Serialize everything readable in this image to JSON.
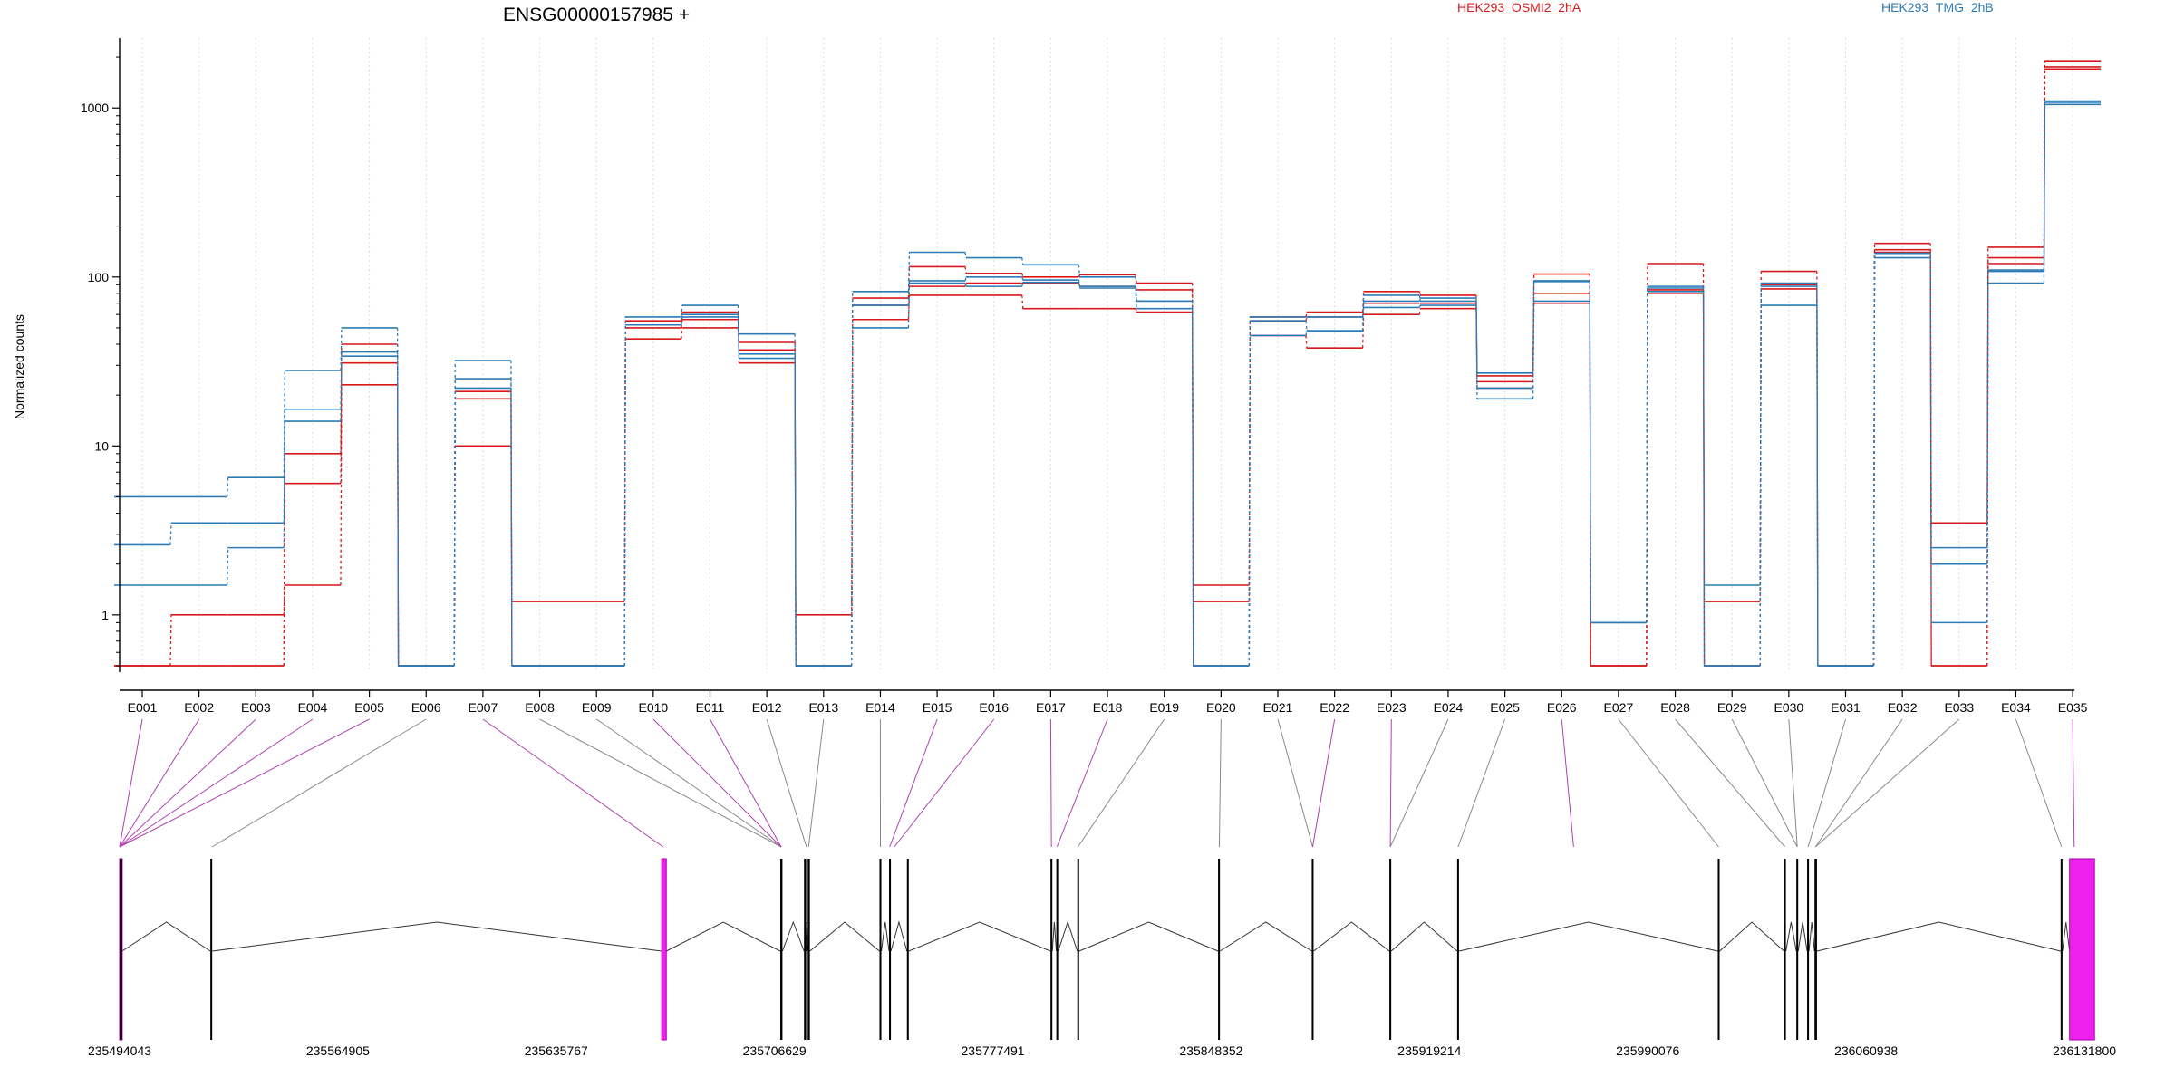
{
  "chart_data": {
    "type": "line",
    "title": "ENSG00000157985 +",
    "ylabel": "Normalized counts",
    "xlabel": "",
    "y_scale": "log",
    "ylim": [
      0.5,
      2500
    ],
    "y_ticks": [
      1,
      10,
      100,
      1000
    ],
    "y_tick_labels": [
      "1",
      "10",
      "100",
      "1000"
    ],
    "grid": "vertical dotted lines at exon bins",
    "legend_position": "top",
    "categories": [
      "E001",
      "E002",
      "E003",
      "E004",
      "E005",
      "E006",
      "E007",
      "E008",
      "E009",
      "E010",
      "E011",
      "E012",
      "E013",
      "E014",
      "E015",
      "E016",
      "E017",
      "E018",
      "E019",
      "E020",
      "E021",
      "E022",
      "E023",
      "E024",
      "E025",
      "E026",
      "E027",
      "E028",
      "E029",
      "E030",
      "E031",
      "E032",
      "E033",
      "E034",
      "E035"
    ],
    "groups": [
      {
        "name": "HEK293_OSMI2_2hA",
        "color": "#d7191c"
      },
      {
        "name": "HEK293_TMG_2hB",
        "color": "#2c7bb6"
      }
    ],
    "series": [
      {
        "group": 0,
        "values": [
          0.5,
          1.0,
          1.0,
          1.5,
          23,
          0.5,
          10,
          1.2,
          1.2,
          43,
          50,
          31,
          1.0,
          56,
          78,
          78,
          65,
          65,
          62,
          1.5,
          45,
          38,
          60,
          65,
          22,
          70,
          0.5,
          80,
          1.2,
          85,
          0.5,
          140,
          0.5,
          120,
          1700
        ]
      },
      {
        "group": 0,
        "values": [
          0.5,
          0.5,
          0.5,
          6,
          31,
          0.5,
          19,
          0.5,
          0.5,
          50,
          56,
          37,
          0.5,
          68,
          88,
          92,
          92,
          88,
          84,
          1.2,
          55,
          58,
          70,
          70,
          24,
          80,
          0.5,
          84,
          0.5,
          90,
          0.5,
          145,
          0.5,
          130,
          1750
        ]
      },
      {
        "group": 0,
        "values": [
          0.5,
          0.5,
          0.5,
          9,
          40,
          0.5,
          21,
          0.5,
          0.5,
          55,
          62,
          41,
          0.5,
          75,
          115,
          105,
          100,
          103,
          92,
          0.5,
          58,
          62,
          82,
          78,
          26,
          104,
          0.5,
          120,
          0.5,
          108,
          0.5,
          158,
          3.5,
          150,
          1900
        ]
      },
      {
        "group": 1,
        "values": [
          5,
          5,
          6.5,
          28,
          50,
          0.5,
          32,
          0.5,
          0.5,
          58,
          68,
          46,
          0.5,
          82,
          140,
          130,
          118,
          100,
          72,
          0.5,
          58,
          58,
          78,
          72,
          27,
          94,
          0.9,
          88,
          1.5,
          92,
          0.5,
          138,
          2.5,
          110,
          1100
        ]
      },
      {
        "group": 1,
        "values": [
          2.6,
          3.5,
          3.5,
          16.5,
          36,
          0.5,
          25,
          0.5,
          0.5,
          52,
          60,
          35,
          0.5,
          68,
          95,
          100,
          96,
          88,
          72,
          0.5,
          55,
          48,
          72,
          75,
          22,
          95,
          0.9,
          86,
          0.5,
          88,
          0.5,
          138,
          2.0,
          108,
          1080
        ]
      },
      {
        "group": 1,
        "values": [
          1.5,
          1.5,
          2.5,
          14,
          34,
          0.5,
          22,
          0.5,
          0.5,
          52,
          58,
          33,
          0.5,
          50,
          92,
          88,
          93,
          86,
          65,
          0.5,
          45,
          48,
          66,
          68,
          19,
          72,
          0.9,
          82,
          0.5,
          68,
          0.5,
          130,
          0.9,
          92,
          1050
        ]
      }
    ],
    "genomic_coordinates": [
      "235494043",
      "235564905",
      "235635767",
      "235706629",
      "235777491",
      "235848352",
      "235919214",
      "235990076",
      "236060938",
      "236131800"
    ],
    "gene_model": {
      "range": [
        235494043,
        236131800
      ],
      "exons": [
        {
          "start": 235494043,
          "end": 235494900,
          "highlight": true
        },
        {
          "start": 235523500,
          "end": 235524100,
          "highlight": false
        },
        {
          "start": 235670000,
          "end": 235671500,
          "highlight": true
        },
        {
          "start": 235708500,
          "end": 235709200,
          "highlight": false
        },
        {
          "start": 235716200,
          "end": 235716900,
          "highlight": false
        },
        {
          "start": 235717400,
          "end": 235718100,
          "highlight": false
        },
        {
          "start": 235740700,
          "end": 235741300,
          "highlight": false
        },
        {
          "start": 235743800,
          "end": 235744400,
          "highlight": false
        },
        {
          "start": 235749600,
          "end": 235750200,
          "highlight": false
        },
        {
          "start": 235796200,
          "end": 235796800,
          "highlight": false
        },
        {
          "start": 235798100,
          "end": 235798700,
          "highlight": false
        },
        {
          "start": 235804900,
          "end": 235805500,
          "highlight": false
        },
        {
          "start": 235850600,
          "end": 235851200,
          "highlight": false
        },
        {
          "start": 235881000,
          "end": 235881600,
          "highlight": false
        },
        {
          "start": 235906200,
          "end": 235906800,
          "highlight": false
        },
        {
          "start": 235928200,
          "end": 235928800,
          "highlight": false
        },
        {
          "start": 236012800,
          "end": 236013400,
          "highlight": false
        },
        {
          "start": 236034300,
          "end": 236034900,
          "highlight": false
        },
        {
          "start": 236038300,
          "end": 236038900,
          "highlight": false
        },
        {
          "start": 236041800,
          "end": 236042400,
          "highlight": false
        },
        {
          "start": 236044200,
          "end": 236045000,
          "highlight": false
        },
        {
          "start": 236124100,
          "end": 236124700,
          "highlight": false
        },
        {
          "start": 236127000,
          "end": 236135100,
          "highlight": true
        }
      ],
      "bin_links": [
        {
          "bin": "E001",
          "pos": 235494043,
          "highlight": true
        },
        {
          "bin": "E002",
          "pos": 235494043,
          "highlight": true
        },
        {
          "bin": "E003",
          "pos": 235494043,
          "highlight": true
        },
        {
          "bin": "E004",
          "pos": 235494043,
          "highlight": true
        },
        {
          "bin": "E005",
          "pos": 235494043,
          "highlight": true
        },
        {
          "bin": "E006",
          "pos": 235524000,
          "highlight": false
        },
        {
          "bin": "E007",
          "pos": 235670500,
          "highlight": true
        },
        {
          "bin": "E008",
          "pos": 235708800,
          "highlight": false
        },
        {
          "bin": "E009",
          "pos": 235708800,
          "highlight": false
        },
        {
          "bin": "E010",
          "pos": 235708800,
          "highlight": true
        },
        {
          "bin": "E011",
          "pos": 235708800,
          "highlight": true
        },
        {
          "bin": "E012",
          "pos": 235717000,
          "highlight": false
        },
        {
          "bin": "E013",
          "pos": 235717700,
          "highlight": false
        },
        {
          "bin": "E014",
          "pos": 235741000,
          "highlight": false
        },
        {
          "bin": "E015",
          "pos": 235744000,
          "highlight": true
        },
        {
          "bin": "E016",
          "pos": 235745500,
          "highlight": true
        },
        {
          "bin": "E017",
          "pos": 235796500,
          "highlight": true
        },
        {
          "bin": "E018",
          "pos": 235798300,
          "highlight": true
        },
        {
          "bin": "E019",
          "pos": 235805100,
          "highlight": false
        },
        {
          "bin": "E020",
          "pos": 235851000,
          "highlight": false
        },
        {
          "bin": "E021",
          "pos": 235881300,
          "highlight": false
        },
        {
          "bin": "E022",
          "pos": 235881300,
          "highlight": true
        },
        {
          "bin": "E023",
          "pos": 235906500,
          "highlight": true
        },
        {
          "bin": "E024",
          "pos": 235906500,
          "highlight": false
        },
        {
          "bin": "E025",
          "pos": 235928500,
          "highlight": false
        },
        {
          "bin": "E026",
          "pos": 235966000,
          "highlight": true
        },
        {
          "bin": "E027",
          "pos": 236013100,
          "highlight": false
        },
        {
          "bin": "E028",
          "pos": 236034600,
          "highlight": false
        },
        {
          "bin": "E029",
          "pos": 236038600,
          "highlight": false
        },
        {
          "bin": "E030",
          "pos": 236038600,
          "highlight": false
        },
        {
          "bin": "E031",
          "pos": 236042100,
          "highlight": false
        },
        {
          "bin": "E032",
          "pos": 236044500,
          "highlight": false
        },
        {
          "bin": "E033",
          "pos": 236044500,
          "highlight": false
        },
        {
          "bin": "E034",
          "pos": 236124400,
          "highlight": false
        },
        {
          "bin": "E035",
          "pos": 236128500,
          "highlight": true
        }
      ]
    }
  }
}
